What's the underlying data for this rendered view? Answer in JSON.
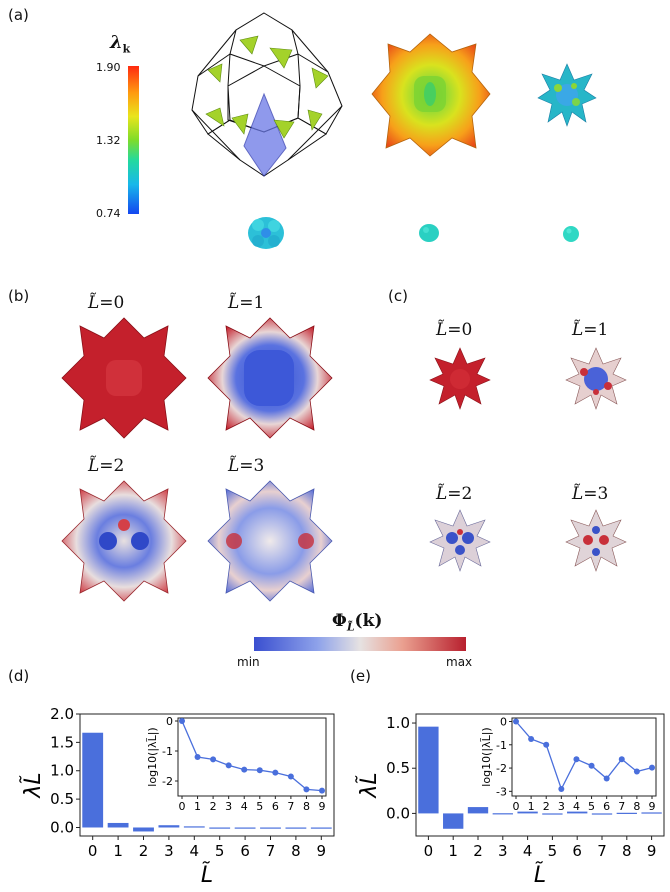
{
  "panels": {
    "a": "(a)",
    "b": "(b)",
    "c": "(c)",
    "d": "(d)",
    "e": "(e)"
  },
  "colorbar_a": {
    "symbol": "λ",
    "subscript": "k",
    "max": "1.90",
    "mid": "1.32",
    "min": "0.74"
  },
  "panel_b": {
    "labels": [
      "=0",
      "=1",
      "=2",
      "=3"
    ]
  },
  "panel_c": {
    "labels": [
      "=0",
      "=1",
      "=2",
      "=3"
    ]
  },
  "colorbar_phi": {
    "symbol": "Φ",
    "arg": "(k)",
    "min": "min",
    "max": "max"
  },
  "colors": {
    "bar": "#4a6fdc",
    "red": "#b8202e",
    "blue": "#3a53c9",
    "green": "#8fc31f",
    "cyan": "#2ec4d8"
  },
  "chart_data": [
    {
      "type": "bar",
      "panel": "(d)",
      "ylabel": "λ_L̃",
      "xlabel": "L̃",
      "categories": [
        "0",
        "1",
        "2",
        "3",
        "4",
        "5",
        "6",
        "7",
        "8",
        "9"
      ],
      "values": [
        1.67,
        0.08,
        -0.07,
        0.04,
        0.02,
        -0.02,
        -0.02,
        -0.02,
        -0.01,
        -0.01
      ],
      "ylim": [
        -0.15,
        2.0
      ],
      "yticks": [
        "0.0",
        "0.5",
        "1.0",
        "1.5",
        "2.0"
      ],
      "inset": {
        "type": "line",
        "ylabel": "log10(|λ_L̃|)",
        "x": [
          "0",
          "1",
          "2",
          "3",
          "4",
          "5",
          "6",
          "7",
          "8",
          "9"
        ],
        "values": [
          0.0,
          -1.2,
          -1.28,
          -1.48,
          -1.62,
          -1.64,
          -1.72,
          -1.85,
          -2.28,
          -2.32
        ],
        "ylim": [
          -2.5,
          0.1
        ],
        "yticks": [
          "0",
          "-1",
          "-2"
        ]
      }
    },
    {
      "type": "bar",
      "panel": "(e)",
      "ylabel": "λ_L̃",
      "xlabel": "L̃",
      "categories": [
        "0",
        "1",
        "2",
        "3",
        "4",
        "5",
        "6",
        "7",
        "8",
        "9"
      ],
      "values": [
        0.96,
        -0.17,
        0.07,
        0.002,
        0.02,
        -0.012,
        0.02,
        -0.004,
        0.007,
        0.011
      ],
      "ylim": [
        -0.25,
        1.1
      ],
      "yticks": [
        "0.0",
        "0.5",
        "1.0"
      ],
      "inset": {
        "type": "line",
        "ylabel": "log10(|λ_L̃|)",
        "x": [
          "0",
          "1",
          "2",
          "3",
          "4",
          "5",
          "6",
          "7",
          "8",
          "9"
        ],
        "values": [
          0.0,
          -0.75,
          -1.0,
          -2.9,
          -1.62,
          -1.9,
          -2.45,
          -1.62,
          -2.15,
          -1.98
        ],
        "ylim": [
          -3.2,
          0.15
        ],
        "yticks": [
          "0",
          "-1",
          "-2",
          "-3"
        ]
      }
    }
  ]
}
